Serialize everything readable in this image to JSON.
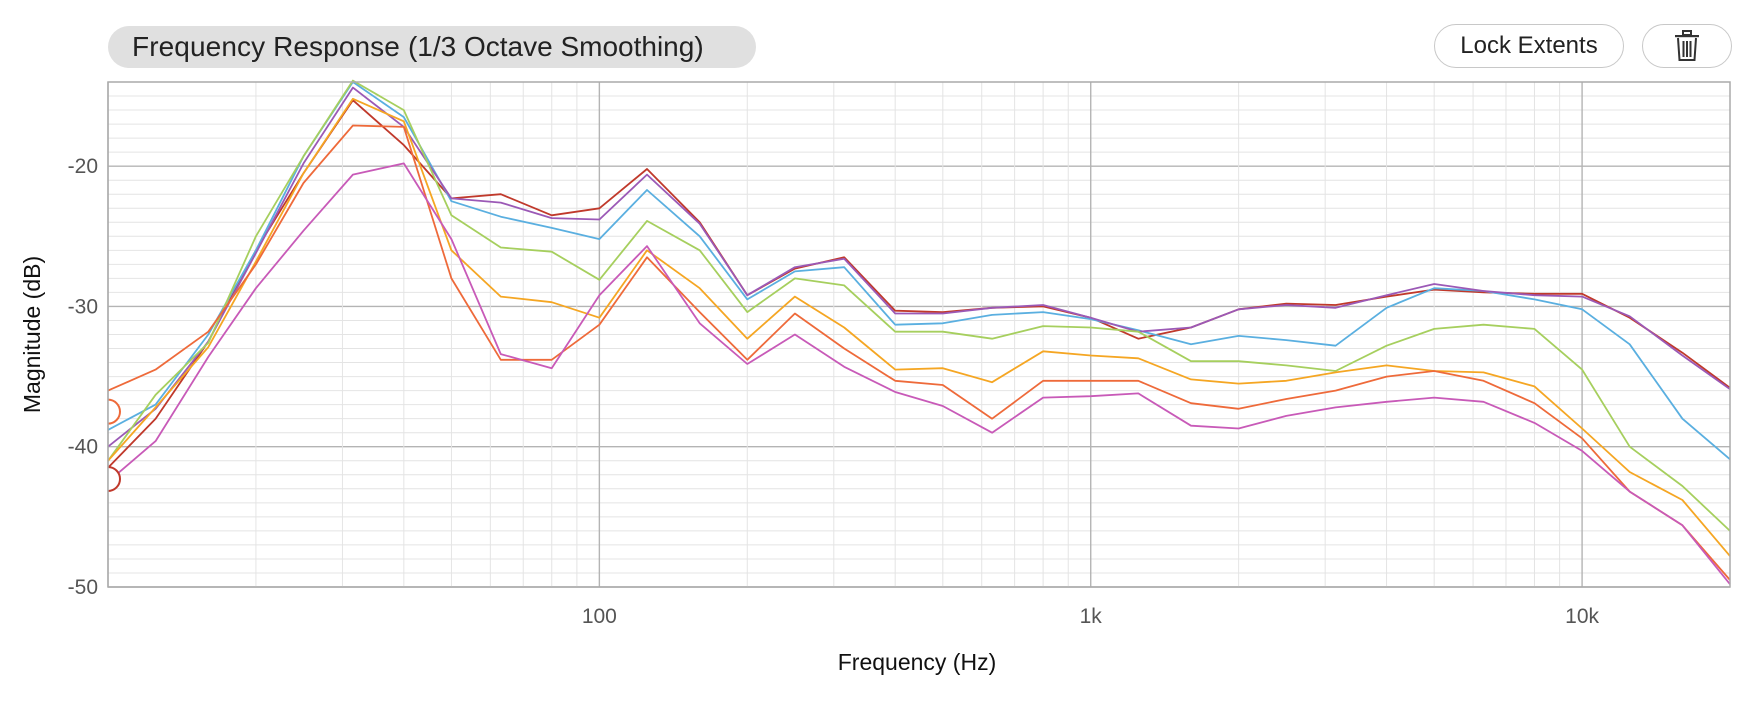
{
  "header": {
    "title_bold": "Frequency Response",
    "title_rest": "(1/3 Octave Smoothing)"
  },
  "buttons": {
    "lock_label": "Lock Extents",
    "delete_icon": "trash-icon"
  },
  "chart_data": {
    "type": "line",
    "title": "Frequency Response (1/3 Octave Smoothing)",
    "xlabel": "Frequency (Hz)",
    "ylabel": "Magnitude (dB)",
    "x_scale": "log",
    "xlim": [
      10,
      20000
    ],
    "ylim": [
      -50,
      -14
    ],
    "x_ticks": [
      {
        "v": 100,
        "label": "100"
      },
      {
        "v": 1000,
        "label": "1k"
      },
      {
        "v": 10000,
        "label": "10k"
      }
    ],
    "y_ticks": [
      {
        "v": -20,
        "label": "-20"
      },
      {
        "v": -30,
        "label": "-30"
      },
      {
        "v": -40,
        "label": "-40"
      },
      {
        "v": -50,
        "label": "-50"
      }
    ],
    "grid": true,
    "x": [
      10,
      12.5,
      16,
      20,
      25,
      31.5,
      40,
      50,
      63,
      80,
      100,
      125,
      160,
      200,
      250,
      315,
      400,
      500,
      630,
      800,
      1000,
      1250,
      1600,
      2000,
      2500,
      3150,
      4000,
      5000,
      6300,
      8000,
      10000,
      12500,
      16000,
      20000
    ],
    "series": [
      {
        "color": "#c0392b",
        "values": [
          -41.5,
          -38.0,
          -32.5,
          -26.0,
          -20.5,
          -15.3,
          -18.5,
          -22.3,
          -22.0,
          -23.5,
          -23.0,
          -20.2,
          -24.0,
          -29.2,
          -27.3,
          -26.5,
          -30.3,
          -30.4,
          -30.1,
          -30.0,
          -30.8,
          -32.3,
          -31.5,
          -30.2,
          -29.8,
          -29.9,
          -29.3,
          -28.8,
          -29.0,
          -29.1,
          -29.1,
          -30.8,
          -33.3,
          -35.8
        ]
      },
      {
        "color": "#5aafe0",
        "values": [
          -38.8,
          -37.0,
          -32.0,
          -26.0,
          -19.3,
          -14.0,
          -16.5,
          -22.5,
          -23.6,
          -24.4,
          -25.2,
          -21.7,
          -25.0,
          -29.5,
          -27.5,
          -27.2,
          -31.3,
          -31.2,
          -30.6,
          -30.4,
          -30.9,
          -31.7,
          -32.7,
          -32.1,
          -32.4,
          -32.8,
          -30.1,
          -28.7,
          -28.9,
          -29.5,
          -30.2,
          -32.7,
          -38.0,
          -40.9
        ]
      },
      {
        "color": "#9b59b6",
        "values": [
          -40.0,
          -37.3,
          -32.5,
          -26.2,
          -19.8,
          -14.4,
          -17.2,
          -22.3,
          -22.6,
          -23.7,
          -23.8,
          -20.6,
          -24.1,
          -29.2,
          -27.2,
          -26.6,
          -30.5,
          -30.5,
          -30.1,
          -29.9,
          -30.8,
          -31.8,
          -31.5,
          -30.2,
          -29.9,
          -30.1,
          -29.2,
          -28.4,
          -28.9,
          -29.2,
          -29.3,
          -30.7,
          -33.5,
          -35.9
        ]
      },
      {
        "color": "#a6cf5e",
        "values": [
          -41.0,
          -36.3,
          -32.6,
          -25.0,
          -19.3,
          -13.9,
          -16.0,
          -23.5,
          -25.8,
          -26.1,
          -28.1,
          -23.9,
          -26.0,
          -30.4,
          -28.0,
          -28.5,
          -31.8,
          -31.8,
          -32.3,
          -31.4,
          -31.5,
          -31.8,
          -33.9,
          -33.9,
          -34.2,
          -34.6,
          -32.8,
          -31.6,
          -31.3,
          -31.6,
          -34.5,
          -40.0,
          -42.8,
          -46.0
        ]
      },
      {
        "color": "#f5a623",
        "values": [
          -41.0,
          -37.2,
          -32.9,
          -26.8,
          -20.5,
          -15.2,
          -16.8,
          -26.0,
          -29.3,
          -29.7,
          -30.8,
          -26.0,
          -28.7,
          -32.3,
          -29.3,
          -31.5,
          -34.5,
          -34.4,
          -35.4,
          -33.2,
          -33.5,
          -33.7,
          -35.2,
          -35.5,
          -35.3,
          -34.7,
          -34.2,
          -34.6,
          -34.7,
          -35.7,
          -38.7,
          -41.8,
          -43.8,
          -47.8
        ]
      },
      {
        "color": "#ee6a3a",
        "values": [
          -36.0,
          -34.5,
          -31.8,
          -27.0,
          -21.2,
          -17.1,
          -17.2,
          -28.0,
          -33.8,
          -33.8,
          -31.3,
          -26.5,
          -30.4,
          -33.8,
          -30.5,
          -33.0,
          -35.3,
          -35.6,
          -38.0,
          -35.3,
          -35.3,
          -35.3,
          -36.9,
          -37.3,
          -36.6,
          -36.0,
          -35.0,
          -34.6,
          -35.3,
          -36.9,
          -39.4,
          -43.2,
          -45.6,
          -49.5
        ]
      },
      {
        "color": "#c85ab8",
        "values": [
          -42.5,
          -39.6,
          -33.6,
          -28.7,
          -24.6,
          -20.6,
          -19.8,
          -25.2,
          -33.4,
          -34.4,
          -29.2,
          -25.7,
          -31.2,
          -34.1,
          -32.0,
          -34.3,
          -36.1,
          -37.1,
          -39.0,
          -36.5,
          -36.4,
          -36.2,
          -38.5,
          -38.7,
          -37.8,
          -37.2,
          -36.8,
          -36.5,
          -36.8,
          -38.3,
          -40.3,
          -43.2,
          -45.6,
          -49.8
        ]
      }
    ],
    "markers": [
      {
        "y": -37.5,
        "color": "#ee6a3a"
      },
      {
        "y": -42.3,
        "color": "#c0392b"
      }
    ]
  }
}
